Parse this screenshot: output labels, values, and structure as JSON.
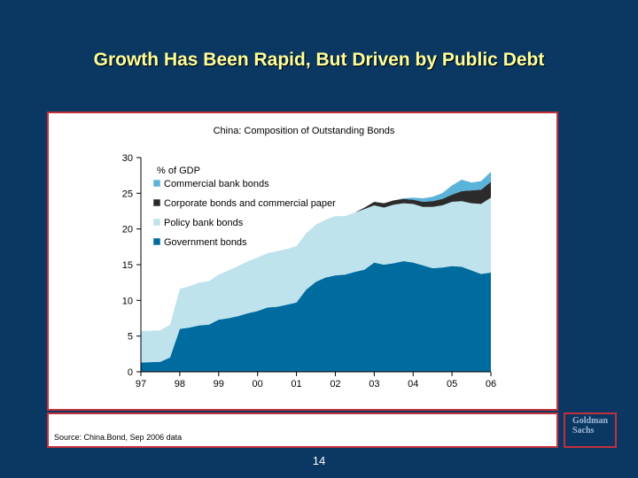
{
  "slide": {
    "title": "Growth Has Been Rapid, But Driven by Public Debt",
    "page_number": "14"
  },
  "source": "Source:  China.Bond, Sep 2006 data",
  "logo": {
    "line1": "Goldman",
    "line2": "Sachs"
  },
  "chart_data": {
    "type": "area",
    "stacked": true,
    "title": "China: Composition of Outstanding Bonds",
    "unit_label": "% of GDP",
    "xlabel": "",
    "ylabel": "",
    "ylim": [
      0,
      30
    ],
    "yticks": [
      0,
      5,
      10,
      15,
      20,
      25,
      30
    ],
    "xlim": [
      1997,
      2006
    ],
    "xticks": [
      {
        "x": 1997,
        "label": "97"
      },
      {
        "x": 1998,
        "label": "98"
      },
      {
        "x": 1999,
        "label": "99"
      },
      {
        "x": 2000,
        "label": "00"
      },
      {
        "x": 2001,
        "label": "01"
      },
      {
        "x": 2002,
        "label": "02"
      },
      {
        "x": 2003,
        "label": "03"
      },
      {
        "x": 2004,
        "label": "04"
      },
      {
        "x": 2005,
        "label": "05"
      },
      {
        "x": 2006,
        "label": "06"
      }
    ],
    "legend_position": "top-left",
    "grid": false,
    "x": [
      1997.0,
      1997.5,
      1997.75,
      1998.0,
      1998.25,
      1998.5,
      1998.75,
      1999.0,
      1999.25,
      1999.5,
      1999.75,
      2000.0,
      2000.25,
      2000.5,
      2000.75,
      2001.0,
      2001.25,
      2001.5,
      2001.75,
      2002.0,
      2002.25,
      2002.5,
      2002.75,
      2003.0,
      2003.25,
      2003.5,
      2003.75,
      2004.0,
      2004.25,
      2004.5,
      2004.75,
      2005.0,
      2005.25,
      2005.5,
      2005.75,
      2006.0
    ],
    "series": [
      {
        "name": "Government bonds",
        "color": "#006b9e",
        "values": [
          1.3,
          1.4,
          2.0,
          6.0,
          6.2,
          6.5,
          6.6,
          7.3,
          7.5,
          7.8,
          8.2,
          8.5,
          9.0,
          9.1,
          9.4,
          9.7,
          11.5,
          12.6,
          13.2,
          13.5,
          13.6,
          14.0,
          14.3,
          15.3,
          15.0,
          15.2,
          15.5,
          15.3,
          14.9,
          14.5,
          14.6,
          14.8,
          14.7,
          14.2,
          13.7,
          13.9
        ]
      },
      {
        "name": "Policy bank bonds",
        "color": "#bfe3ec",
        "values": [
          4.4,
          4.4,
          4.6,
          5.6,
          5.8,
          6.0,
          6.1,
          6.3,
          6.7,
          7.0,
          7.3,
          7.5,
          7.6,
          7.8,
          7.8,
          7.9,
          7.9,
          8.0,
          8.1,
          8.3,
          8.2,
          8.3,
          8.5,
          8.0,
          8.0,
          8.2,
          8.1,
          8.2,
          8.2,
          8.6,
          8.7,
          9.0,
          9.2,
          9.4,
          9.8,
          10.5
        ]
      },
      {
        "name": "Corporate bonds and commercial paper",
        "color": "#2b2b2b",
        "values": [
          0.0,
          0.0,
          0.0,
          0.0,
          0.0,
          0.0,
          0.0,
          0.0,
          0.0,
          0.0,
          0.0,
          0.0,
          0.0,
          0.0,
          0.0,
          0.0,
          0.0,
          0.0,
          0.0,
          0.0,
          0.0,
          0.0,
          0.2,
          0.5,
          0.6,
          0.6,
          0.6,
          0.6,
          0.7,
          0.8,
          0.9,
          1.0,
          1.4,
          1.8,
          2.0,
          2.2
        ]
      },
      {
        "name": "Commercial bank bonds",
        "color": "#5ab3d8",
        "values": [
          0.0,
          0.0,
          0.0,
          0.0,
          0.0,
          0.0,
          0.0,
          0.0,
          0.0,
          0.0,
          0.0,
          0.0,
          0.0,
          0.0,
          0.0,
          0.0,
          0.0,
          0.0,
          0.0,
          0.0,
          0.0,
          0.0,
          0.0,
          0.0,
          0.0,
          0.0,
          0.1,
          0.3,
          0.5,
          0.6,
          0.8,
          1.3,
          1.6,
          1.1,
          1.2,
          1.4
        ]
      }
    ]
  }
}
